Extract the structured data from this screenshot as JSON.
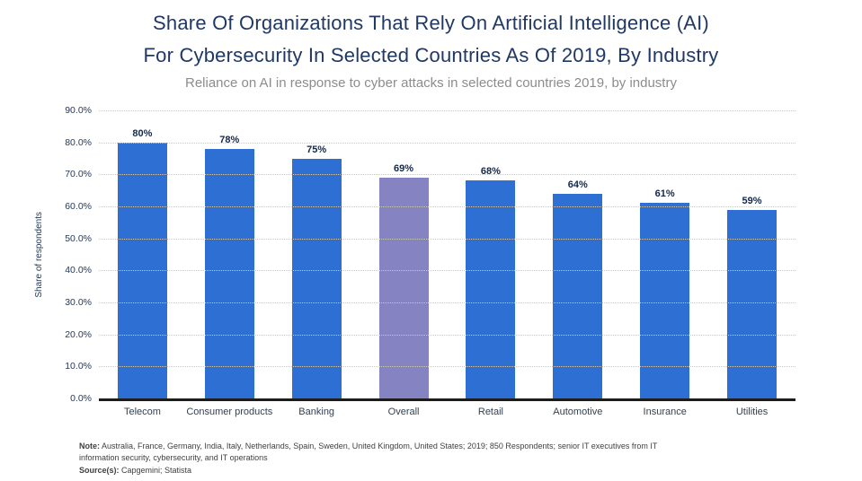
{
  "header": {
    "title_lines": [
      "Share Of Organizations That Rely On Artificial Intelligence (AI)",
      "For Cybersecurity In Selected Countries As Of 2019, By Industry"
    ],
    "subtitle": "Reliance on AI in response to cyber attacks in selected countries 2019, by industry"
  },
  "chart_data": {
    "type": "bar",
    "title": "Share Of Organizations That Rely On Artificial Intelligence (AI) For Cybersecurity In Selected Countries As Of 2019, By Industry",
    "subtitle": "Reliance on AI in response to cyber attacks in selected countries 2019, by industry",
    "categories": [
      "Telecom",
      "Consumer products",
      "Banking",
      "Overall",
      "Retail",
      "Automotive",
      "Insurance",
      "Utilities"
    ],
    "values": [
      80,
      78,
      75,
      69,
      68,
      64,
      61,
      59
    ],
    "value_labels": [
      "80%",
      "78%",
      "75%",
      "69%",
      "68%",
      "64%",
      "61%",
      "59%"
    ],
    "xlabel": "",
    "ylabel": "Share of respondents",
    "ylim": [
      0,
      90
    ],
    "y_ticks": [
      {
        "label": "0.0%",
        "value": 0
      },
      {
        "label": "10.0%",
        "value": 10
      },
      {
        "label": "20.0%",
        "value": 20
      },
      {
        "label": "30.0%",
        "value": 30
      },
      {
        "label": "40.0%",
        "value": 40
      },
      {
        "label": "50.0%",
        "value": 50
      },
      {
        "label": "60.0%",
        "value": 60
      },
      {
        "label": "70.0%",
        "value": 70
      },
      {
        "label": "80.0%",
        "value": 80
      },
      {
        "label": "90.0%",
        "value": 90
      }
    ],
    "grid": "horizontal-dotted",
    "legend": "none",
    "bar_color": "#2d6fd2",
    "highlight_color": "#8583c1",
    "highlight_index": 3
  },
  "footer": {
    "note_label": "Note:",
    "note_text": " Australia, France, Germany, India, Italy, Netherlands, Spain, Sweden, United Kingdom, United States; 2019; 850 Respondents; senior IT executives from IT information security, cybersecurity, and IT operations",
    "source_label": "Source(s):",
    "source_text": " Capgemini; Statista"
  }
}
